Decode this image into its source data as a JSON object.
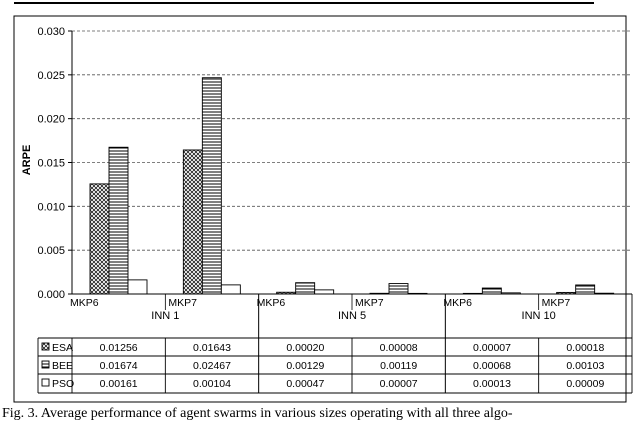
{
  "chart_data": {
    "type": "bar",
    "ylabel": "ARPE",
    "ylim": [
      0,
      0.03
    ],
    "yticks": [
      "0.000",
      "0.005",
      "0.010",
      "0.015",
      "0.020",
      "0.025",
      "0.030"
    ],
    "grid": "horizontal dashed",
    "categories": [
      "MKP6",
      "MKP7",
      "MKP6",
      "MKP7",
      "MKP6",
      "MKP7"
    ],
    "groups": [
      "INN 1",
      "INN 5",
      "INN 10"
    ],
    "series": [
      {
        "name": "ESA",
        "values": [
          0.01256,
          0.01643,
          0.0002,
          8e-05,
          7e-05,
          0.00018
        ],
        "labels": [
          "0.01256",
          "0.01643",
          "0.00020",
          "0.00008",
          "0.00007",
          "0.00018"
        ]
      },
      {
        "name": "BEE",
        "values": [
          0.01674,
          0.02467,
          0.00129,
          0.00119,
          0.00068,
          0.00103
        ],
        "labels": [
          "0.01674",
          "0.02467",
          "0.00129",
          "0.00119",
          "0.00068",
          "0.00103"
        ]
      },
      {
        "name": "PSO",
        "values": [
          0.00161,
          0.00104,
          0.00047,
          7e-05,
          0.00013,
          9e-05
        ],
        "labels": [
          "0.00161",
          "0.00104",
          "0.00047",
          "0.00007",
          "0.00013",
          "0.00009"
        ]
      }
    ]
  },
  "caption": "Fig. 3. Average performance of agent swarms in various sizes operating with all three algo-"
}
